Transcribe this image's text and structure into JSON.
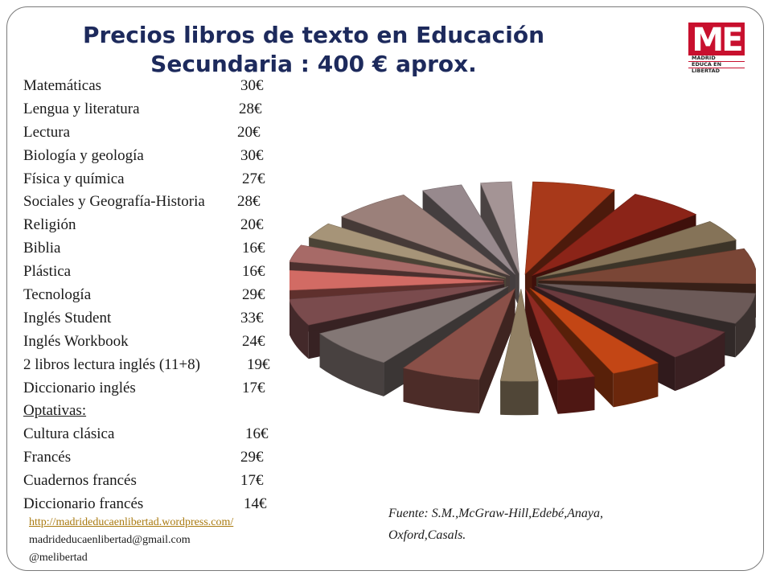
{
  "slide": {
    "title_line1": "Precios libros de texto en Educación",
    "title_line2": "Secundaria : 400 € aprox."
  },
  "logo": {
    "letters": "ME",
    "line1": "MADRID",
    "line2": "EDUCA EN",
    "line3": "LIBERTAD",
    "brand_color": "#c8102e"
  },
  "prices": [
    {
      "label": "Matemáticas",
      "price": "30€"
    },
    {
      "label": "Lengua y literatura",
      "price": "28€"
    },
    {
      "label": "Lectura",
      "price": "20€"
    },
    {
      "label": "Biología y geología",
      "price": "30€"
    },
    {
      "label": "Física y química",
      "price": "27€"
    },
    {
      "label": "Sociales y Geografía-Historia",
      "price": "28€"
    },
    {
      "label": "Religión",
      "price": "20€"
    },
    {
      "label": "Biblia",
      "price": "16€"
    },
    {
      "label": "Plástica",
      "price": "16€"
    },
    {
      "label": "Tecnología",
      "price": "29€"
    },
    {
      "label": "Inglés Student",
      "price": "33€"
    },
    {
      "label": "Inglés Workbook",
      "price": "24€"
    },
    {
      "label": "2 libros lectura inglés (11+8)",
      "price": "19€"
    },
    {
      "label": "Diccionario inglés",
      "price": "17€"
    },
    {
      "label": "Optativas:",
      "price": ""
    },
    {
      "label": "Cultura clásica",
      "price": "16€"
    },
    {
      "label": "Francés",
      "price": "29€"
    },
    {
      "label": "Cuadernos francés",
      "price": "17€"
    },
    {
      "label": "Diccionario francés",
      "price": "14€"
    }
  ],
  "links": {
    "blog": "http://madrideducaenlibertad.wordpress.com/",
    "email": "madrideducaenlibertad@gmail.com",
    "twitter": "@melibertad"
  },
  "source": {
    "line1": "Fuente: S.M.,McGraw-Hill,Edebé,Anaya,",
    "line2": "Oxford,Casals."
  },
  "chart_data": {
    "type": "pie",
    "style": "3d-exploded",
    "title": "",
    "categories": [
      "Matemáticas",
      "Lengua y literatura",
      "Lectura",
      "Biología y geología",
      "Física y química",
      "Sociales y Geografía-Historia",
      "Religión",
      "Biblia",
      "Plástica",
      "Tecnología",
      "Inglés Student",
      "Inglés Workbook",
      "2 libros lectura inglés (11+8)",
      "Diccionario inglés",
      "Cultura clásica",
      "Francés",
      "Cuadernos francés",
      "Diccionario francés"
    ],
    "values": [
      30,
      28,
      20,
      30,
      27,
      28,
      20,
      16,
      16,
      29,
      33,
      24,
      19,
      17,
      16,
      29,
      17,
      14
    ],
    "colors": [
      "#a8391a",
      "#8b2418",
      "#857358",
      "#7a4636",
      "#6c5a58",
      "#6a3a3e",
      "#c34615",
      "#8e2a22",
      "#918064",
      "#8a5048",
      "#837775",
      "#7a4b4d",
      "#d26b64",
      "#a76a67",
      "#a69478",
      "#9b807a",
      "#97898d",
      "#a49495"
    ]
  }
}
